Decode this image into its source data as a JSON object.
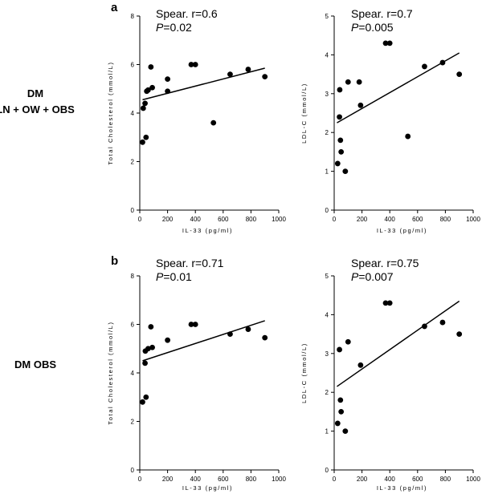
{
  "panels": [
    {
      "letter": "a",
      "row_label_lines": [
        "DM",
        "LN + OW + OBS"
      ]
    },
    {
      "letter": "b",
      "row_label_lines": [
        "DM OBS"
      ]
    }
  ],
  "chart_data": [
    {
      "type": "scatter",
      "panel": "a",
      "position": "left",
      "xlabel": "IL-33 (pg/ml)",
      "ylabel": "Total Cholesterol (mmol/L)",
      "xlim": [
        0,
        1000
      ],
      "ylim": [
        0,
        8
      ],
      "xticks": [
        0,
        200,
        400,
        600,
        800,
        1000
      ],
      "yticks": [
        0,
        2,
        4,
        6,
        8
      ],
      "annotation": {
        "spearman": "Spear. r=0.6",
        "p_prefix": "P",
        "p_value": "=0.02"
      },
      "x": [
        20,
        25,
        38,
        45,
        50,
        60,
        80,
        90,
        200,
        200,
        370,
        400,
        530,
        650,
        780,
        900
      ],
      "y": [
        2.8,
        4.2,
        4.4,
        3.0,
        4.9,
        4.95,
        5.9,
        5.05,
        4.9,
        5.4,
        6.0,
        6.0,
        3.6,
        5.6,
        5.8,
        5.5
      ],
      "fit": {
        "x": [
          20,
          900
        ],
        "y": [
          4.55,
          5.85
        ]
      }
    },
    {
      "type": "scatter",
      "panel": "a",
      "position": "right",
      "xlabel": "IL-33 (pg/ml)",
      "ylabel": "LDL-C (mmol/L)",
      "xlim": [
        0,
        1000
      ],
      "ylim": [
        0,
        5
      ],
      "xticks": [
        0,
        200,
        400,
        600,
        800,
        1000
      ],
      "yticks": [
        0,
        1,
        2,
        3,
        4,
        5
      ],
      "annotation": {
        "spearman": "Spear. r=0.7",
        "p_prefix": "P",
        "p_value": "=0.005"
      },
      "x": [
        25,
        38,
        40,
        45,
        50,
        80,
        100,
        180,
        190,
        370,
        400,
        530,
        650,
        780,
        900
      ],
      "y": [
        1.2,
        2.4,
        3.1,
        1.8,
        1.5,
        1.0,
        3.3,
        3.3,
        2.7,
        4.3,
        4.3,
        1.9,
        3.7,
        3.8,
        3.5
      ],
      "fit": {
        "x": [
          20,
          900
        ],
        "y": [
          2.25,
          4.05
        ]
      }
    },
    {
      "type": "scatter",
      "panel": "b",
      "position": "left",
      "xlabel": "IL-33 (pg/ml)",
      "ylabel": "Total Cholesterol (mmol/L)",
      "xlim": [
        0,
        1000
      ],
      "ylim": [
        0,
        8
      ],
      "xticks": [
        0,
        200,
        400,
        600,
        800,
        1000
      ],
      "yticks": [
        0,
        2,
        4,
        6,
        8
      ],
      "annotation": {
        "spearman": "Spear. r=0.71",
        "p_prefix": "P",
        "p_value": "=0.01"
      },
      "x": [
        20,
        38,
        40,
        45,
        60,
        80,
        90,
        200,
        370,
        400,
        650,
        780,
        900
      ],
      "y": [
        2.8,
        4.4,
        4.9,
        3.0,
        5.0,
        5.9,
        5.05,
        5.35,
        6.0,
        6.0,
        5.6,
        5.8,
        5.45
      ],
      "fit": {
        "x": [
          20,
          900
        ],
        "y": [
          4.5,
          6.15
        ]
      }
    },
    {
      "type": "scatter",
      "panel": "b",
      "position": "right",
      "xlabel": "IL-33 (pg/ml)",
      "ylabel": "LDL-C (mmol/L)",
      "xlim": [
        0,
        1000
      ],
      "ylim": [
        0,
        5
      ],
      "xticks": [
        0,
        200,
        400,
        600,
        800,
        1000
      ],
      "yticks": [
        0,
        1,
        2,
        3,
        4,
        5
      ],
      "annotation": {
        "spearman": "Spear. r=0.75",
        "p_prefix": "P",
        "p_value": "=0.007"
      },
      "x": [
        25,
        38,
        45,
        50,
        80,
        100,
        190,
        370,
        400,
        650,
        780,
        900
      ],
      "y": [
        1.2,
        3.1,
        1.8,
        1.5,
        1.0,
        3.3,
        2.7,
        4.3,
        4.3,
        3.7,
        3.8,
        3.5
      ],
      "fit": {
        "x": [
          20,
          900
        ],
        "y": [
          2.15,
          4.35
        ]
      }
    }
  ]
}
